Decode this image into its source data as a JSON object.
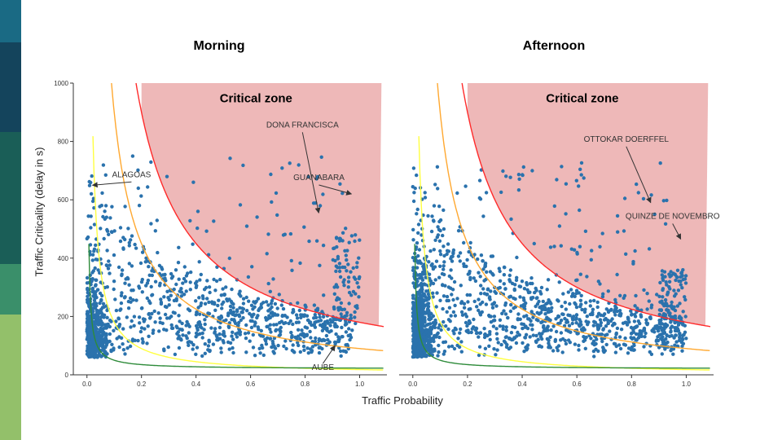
{
  "sidebar": {
    "colors": [
      "#1a6a84",
      "#14445c",
      "#1a5e57",
      "#3a8f6a",
      "#93c06a"
    ]
  },
  "xlabel": "Traffic Probability",
  "ylabel": "Traffic Criticality (delay in s)",
  "chart_data": [
    {
      "type": "scatter",
      "title": "Morning",
      "xlim": [
        -0.05,
        1.1
      ],
      "ylim": [
        0,
        1000
      ],
      "xticks": [
        "0.0",
        "0.2",
        "0.4",
        "0.6",
        "0.8",
        "1.0"
      ],
      "yticks": [
        "0",
        "200",
        "400",
        "600",
        "800",
        "1000"
      ],
      "grid": false,
      "zone_label": "Critical zone",
      "zone_color": "#eeb8b8",
      "point_color": "#2a72ad",
      "curves": [
        {
          "color": "#ff2a2a",
          "k": 180
        },
        {
          "color": "#ffa830",
          "k": 90
        },
        {
          "color": "#ffff40",
          "k": 18
        },
        {
          "color": "#2e8b3a",
          "k": 3
        }
      ],
      "annotations": [
        {
          "text": "ALAGOAS",
          "x": 0.02,
          "y": 650
        },
        {
          "text": "DONA FRANCISCA",
          "x": 0.85,
          "y": 555
        },
        {
          "text": "GUANABARA",
          "x": 0.97,
          "y": 620
        },
        {
          "text": "AUBE",
          "x": 0.91,
          "y": 100
        }
      ]
    },
    {
      "type": "scatter",
      "title": "Afternoon",
      "xlim": [
        -0.05,
        1.1
      ],
      "ylim": [
        0,
        1000
      ],
      "xticks": [
        "0.0",
        "0.2",
        "0.4",
        "0.6",
        "0.8",
        "1.0"
      ],
      "yticks": [],
      "grid": false,
      "zone_label": "Critical zone",
      "zone_color": "#eeb8b8",
      "point_color": "#2a72ad",
      "curves": [
        {
          "color": "#ff2a2a",
          "k": 180
        },
        {
          "color": "#ffa830",
          "k": 90
        },
        {
          "color": "#ffff40",
          "k": 18
        },
        {
          "color": "#2e8b3a",
          "k": 3
        }
      ],
      "annotations": [
        {
          "text": "OTTOKAR DOERFFEL",
          "x": 0.87,
          "y": 590
        },
        {
          "text": "QUINZE DE NOVEMBRO",
          "x": 0.98,
          "y": 465
        }
      ]
    }
  ]
}
